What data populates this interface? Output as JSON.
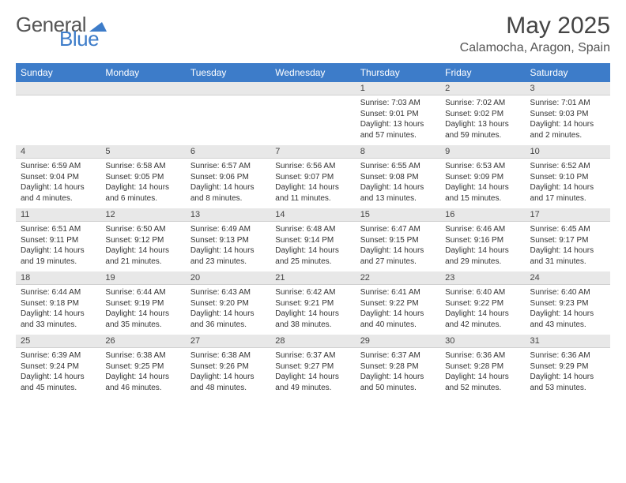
{
  "logo": {
    "text1": "General",
    "text2": "Blue"
  },
  "title": "May 2025",
  "location": "Calamocha, Aragon, Spain",
  "day_headers": [
    "Sunday",
    "Monday",
    "Tuesday",
    "Wednesday",
    "Thursday",
    "Friday",
    "Saturday"
  ],
  "colors": {
    "header_bg": "#3d7cc9",
    "header_fg": "#ffffff",
    "daynum_bg": "#e8e8e8",
    "text": "#333333"
  },
  "weeks": [
    [
      null,
      null,
      null,
      null,
      {
        "n": "1",
        "sr": "Sunrise: 7:03 AM",
        "ss": "Sunset: 9:01 PM",
        "dl1": "Daylight: 13 hours",
        "dl2": "and 57 minutes."
      },
      {
        "n": "2",
        "sr": "Sunrise: 7:02 AM",
        "ss": "Sunset: 9:02 PM",
        "dl1": "Daylight: 13 hours",
        "dl2": "and 59 minutes."
      },
      {
        "n": "3",
        "sr": "Sunrise: 7:01 AM",
        "ss": "Sunset: 9:03 PM",
        "dl1": "Daylight: 14 hours",
        "dl2": "and 2 minutes."
      }
    ],
    [
      {
        "n": "4",
        "sr": "Sunrise: 6:59 AM",
        "ss": "Sunset: 9:04 PM",
        "dl1": "Daylight: 14 hours",
        "dl2": "and 4 minutes."
      },
      {
        "n": "5",
        "sr": "Sunrise: 6:58 AM",
        "ss": "Sunset: 9:05 PM",
        "dl1": "Daylight: 14 hours",
        "dl2": "and 6 minutes."
      },
      {
        "n": "6",
        "sr": "Sunrise: 6:57 AM",
        "ss": "Sunset: 9:06 PM",
        "dl1": "Daylight: 14 hours",
        "dl2": "and 8 minutes."
      },
      {
        "n": "7",
        "sr": "Sunrise: 6:56 AM",
        "ss": "Sunset: 9:07 PM",
        "dl1": "Daylight: 14 hours",
        "dl2": "and 11 minutes."
      },
      {
        "n": "8",
        "sr": "Sunrise: 6:55 AM",
        "ss": "Sunset: 9:08 PM",
        "dl1": "Daylight: 14 hours",
        "dl2": "and 13 minutes."
      },
      {
        "n": "9",
        "sr": "Sunrise: 6:53 AM",
        "ss": "Sunset: 9:09 PM",
        "dl1": "Daylight: 14 hours",
        "dl2": "and 15 minutes."
      },
      {
        "n": "10",
        "sr": "Sunrise: 6:52 AM",
        "ss": "Sunset: 9:10 PM",
        "dl1": "Daylight: 14 hours",
        "dl2": "and 17 minutes."
      }
    ],
    [
      {
        "n": "11",
        "sr": "Sunrise: 6:51 AM",
        "ss": "Sunset: 9:11 PM",
        "dl1": "Daylight: 14 hours",
        "dl2": "and 19 minutes."
      },
      {
        "n": "12",
        "sr": "Sunrise: 6:50 AM",
        "ss": "Sunset: 9:12 PM",
        "dl1": "Daylight: 14 hours",
        "dl2": "and 21 minutes."
      },
      {
        "n": "13",
        "sr": "Sunrise: 6:49 AM",
        "ss": "Sunset: 9:13 PM",
        "dl1": "Daylight: 14 hours",
        "dl2": "and 23 minutes."
      },
      {
        "n": "14",
        "sr": "Sunrise: 6:48 AM",
        "ss": "Sunset: 9:14 PM",
        "dl1": "Daylight: 14 hours",
        "dl2": "and 25 minutes."
      },
      {
        "n": "15",
        "sr": "Sunrise: 6:47 AM",
        "ss": "Sunset: 9:15 PM",
        "dl1": "Daylight: 14 hours",
        "dl2": "and 27 minutes."
      },
      {
        "n": "16",
        "sr": "Sunrise: 6:46 AM",
        "ss": "Sunset: 9:16 PM",
        "dl1": "Daylight: 14 hours",
        "dl2": "and 29 minutes."
      },
      {
        "n": "17",
        "sr": "Sunrise: 6:45 AM",
        "ss": "Sunset: 9:17 PM",
        "dl1": "Daylight: 14 hours",
        "dl2": "and 31 minutes."
      }
    ],
    [
      {
        "n": "18",
        "sr": "Sunrise: 6:44 AM",
        "ss": "Sunset: 9:18 PM",
        "dl1": "Daylight: 14 hours",
        "dl2": "and 33 minutes."
      },
      {
        "n": "19",
        "sr": "Sunrise: 6:44 AM",
        "ss": "Sunset: 9:19 PM",
        "dl1": "Daylight: 14 hours",
        "dl2": "and 35 minutes."
      },
      {
        "n": "20",
        "sr": "Sunrise: 6:43 AM",
        "ss": "Sunset: 9:20 PM",
        "dl1": "Daylight: 14 hours",
        "dl2": "and 36 minutes."
      },
      {
        "n": "21",
        "sr": "Sunrise: 6:42 AM",
        "ss": "Sunset: 9:21 PM",
        "dl1": "Daylight: 14 hours",
        "dl2": "and 38 minutes."
      },
      {
        "n": "22",
        "sr": "Sunrise: 6:41 AM",
        "ss": "Sunset: 9:22 PM",
        "dl1": "Daylight: 14 hours",
        "dl2": "and 40 minutes."
      },
      {
        "n": "23",
        "sr": "Sunrise: 6:40 AM",
        "ss": "Sunset: 9:22 PM",
        "dl1": "Daylight: 14 hours",
        "dl2": "and 42 minutes."
      },
      {
        "n": "24",
        "sr": "Sunrise: 6:40 AM",
        "ss": "Sunset: 9:23 PM",
        "dl1": "Daylight: 14 hours",
        "dl2": "and 43 minutes."
      }
    ],
    [
      {
        "n": "25",
        "sr": "Sunrise: 6:39 AM",
        "ss": "Sunset: 9:24 PM",
        "dl1": "Daylight: 14 hours",
        "dl2": "and 45 minutes."
      },
      {
        "n": "26",
        "sr": "Sunrise: 6:38 AM",
        "ss": "Sunset: 9:25 PM",
        "dl1": "Daylight: 14 hours",
        "dl2": "and 46 minutes."
      },
      {
        "n": "27",
        "sr": "Sunrise: 6:38 AM",
        "ss": "Sunset: 9:26 PM",
        "dl1": "Daylight: 14 hours",
        "dl2": "and 48 minutes."
      },
      {
        "n": "28",
        "sr": "Sunrise: 6:37 AM",
        "ss": "Sunset: 9:27 PM",
        "dl1": "Daylight: 14 hours",
        "dl2": "and 49 minutes."
      },
      {
        "n": "29",
        "sr": "Sunrise: 6:37 AM",
        "ss": "Sunset: 9:28 PM",
        "dl1": "Daylight: 14 hours",
        "dl2": "and 50 minutes."
      },
      {
        "n": "30",
        "sr": "Sunrise: 6:36 AM",
        "ss": "Sunset: 9:28 PM",
        "dl1": "Daylight: 14 hours",
        "dl2": "and 52 minutes."
      },
      {
        "n": "31",
        "sr": "Sunrise: 6:36 AM",
        "ss": "Sunset: 9:29 PM",
        "dl1": "Daylight: 14 hours",
        "dl2": "and 53 minutes."
      }
    ]
  ]
}
